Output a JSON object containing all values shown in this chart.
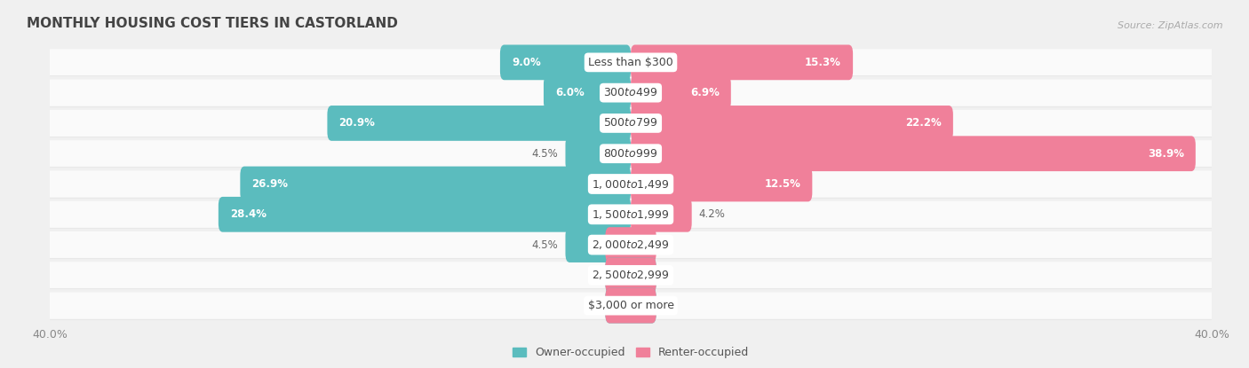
{
  "title": "MONTHLY HOUSING COST TIERS IN CASTORLAND",
  "source": "Source: ZipAtlas.com",
  "categories": [
    "Less than $300",
    "$300 to $499",
    "$500 to $799",
    "$800 to $999",
    "$1,000 to $1,499",
    "$1,500 to $1,999",
    "$2,000 to $2,499",
    "$2,500 to $2,999",
    "$3,000 or more"
  ],
  "owner_values": [
    9.0,
    6.0,
    20.9,
    4.5,
    26.9,
    28.4,
    4.5,
    0.0,
    0.0
  ],
  "renter_values": [
    15.3,
    6.9,
    22.2,
    38.9,
    12.5,
    4.2,
    0.0,
    0.0,
    0.0
  ],
  "owner_color": "#5bbcbe",
  "renter_color": "#f0809a",
  "owner_label": "Owner-occupied",
  "renter_label": "Renter-occupied",
  "axis_limit": 40.0,
  "background_color": "#f0f0f0",
  "row_bg_color": "#fafafa",
  "row_alt_color": "#e8e8e8",
  "title_fontsize": 11,
  "label_fontsize": 8.5,
  "tick_fontsize": 9,
  "source_fontsize": 8,
  "bar_height": 0.58,
  "label_color_inside": "#ffffff",
  "label_color_outside": "#666666",
  "center_label_color": "#444444",
  "inside_threshold": 5.0
}
